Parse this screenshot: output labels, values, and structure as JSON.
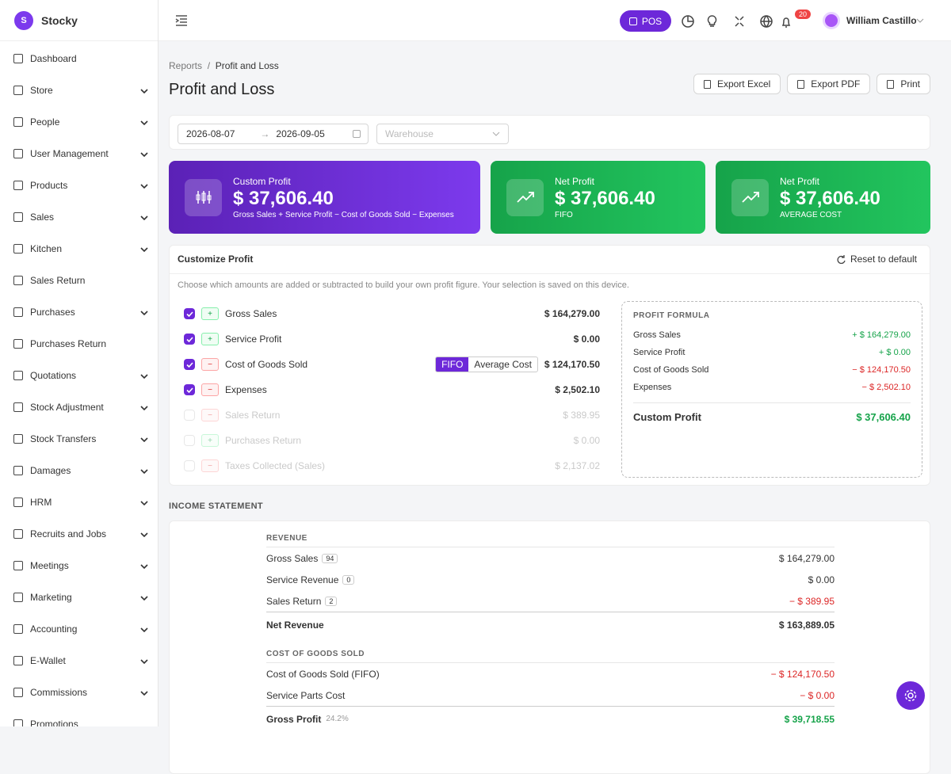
{
  "brand": "Stocky",
  "sidebar": [
    {
      "label": "Dashboard",
      "sub": false
    },
    {
      "label": "Store",
      "sub": true
    },
    {
      "label": "People",
      "sub": true
    },
    {
      "label": "User Management",
      "sub": true
    },
    {
      "label": "Products",
      "sub": true
    },
    {
      "label": "Sales",
      "sub": true
    },
    {
      "label": "Kitchen",
      "sub": true
    },
    {
      "label": "Sales Return",
      "sub": false
    },
    {
      "label": "Purchases",
      "sub": true
    },
    {
      "label": "Purchases Return",
      "sub": false
    },
    {
      "label": "Quotations",
      "sub": true
    },
    {
      "label": "Stock Adjustment",
      "sub": true
    },
    {
      "label": "Stock Transfers",
      "sub": true
    },
    {
      "label": "Damages",
      "sub": true
    },
    {
      "label": "HRM",
      "sub": true
    },
    {
      "label": "Recruits and Jobs",
      "sub": true
    },
    {
      "label": "Meetings",
      "sub": true
    },
    {
      "label": "Marketing",
      "sub": true
    },
    {
      "label": "Accounting",
      "sub": true
    },
    {
      "label": "E-Wallet",
      "sub": true
    },
    {
      "label": "Commissions",
      "sub": true
    },
    {
      "label": "Promotions",
      "sub": false
    }
  ],
  "topbar": {
    "pos": "POS",
    "notifications": 20,
    "user": "William Castillo"
  },
  "breadcrumb": [
    "Reports",
    "Profit and Loss"
  ],
  "title": "Profit and Loss",
  "actions": [
    "Export Excel",
    "Export PDF",
    "Print"
  ],
  "filters": {
    "start": "2026-08-07",
    "end": "2026-09-05",
    "warehouse": "Warehouse"
  },
  "cards": [
    {
      "label": "Custom Profit",
      "value": "$ 37,606.40",
      "note": "Gross Sales + Service Profit − Cost of Goods Sold − Expenses"
    },
    {
      "label": "Net Profit",
      "value": "$ 37,606.40",
      "note": "FIFO"
    },
    {
      "label": "Net Profit",
      "value": "$ 37,606.40",
      "note": "AVERAGE COST"
    }
  ],
  "customize": {
    "title": "Customize Profit",
    "reset": "Reset to default",
    "description": "Choose which amounts are added or subtracted to build your own profit figure. Your selection is saved on this device.",
    "items": [
      {
        "checked": true,
        "sign": "+",
        "label": "Gross Sales",
        "amount": "$ 164,279.00"
      },
      {
        "checked": true,
        "sign": "+",
        "label": "Service Profit",
        "amount": "$ 0.00"
      },
      {
        "checked": true,
        "sign": "−",
        "label": "Cost of Goods Sold",
        "amount": "$ 124,170.50"
      },
      {
        "checked": true,
        "sign": "−",
        "label": "Expenses",
        "amount": "$ 2,502.10"
      },
      {
        "checked": false,
        "sign": "−",
        "label": "Sales Return",
        "amount": "$ 389.95"
      },
      {
        "checked": false,
        "sign": "+",
        "label": "Purchases Return",
        "amount": "$ 0.00"
      },
      {
        "checked": false,
        "sign": "−",
        "label": "Taxes Collected (Sales)",
        "amount": "$ 2,137.02"
      }
    ],
    "cost_methods": [
      "FIFO",
      "Average Cost"
    ],
    "formula": {
      "title": "PROFIT FORMULA",
      "rows": [
        {
          "label": "Gross Sales",
          "value": "+ $ 164,279.00"
        },
        {
          "label": "Service Profit",
          "value": "+ $ 0.00"
        },
        {
          "label": "Cost of Goods Sold",
          "value": "− $ 124,170.50"
        },
        {
          "label": "Expenses",
          "value": "− $ 2,502.10"
        }
      ],
      "total_label": "Custom Profit",
      "total_value": "$ 37,606.40"
    }
  },
  "income_statement": {
    "title": "INCOME STATEMENT",
    "revenue": {
      "title": "REVENUE",
      "rows": [
        {
          "label": "Gross Sales",
          "count": 94,
          "value": "$ 164,279.00"
        },
        {
          "label": "Service Revenue",
          "count": 0,
          "value": "$ 0.00"
        },
        {
          "label": "Sales Return",
          "count": 2,
          "value": "− $ 389.95"
        }
      ],
      "total_label": "Net Revenue",
      "total_value": "$ 163,889.05"
    },
    "cogs": {
      "title": "COST OF GOODS SOLD",
      "rows": [
        {
          "label": "Cost of Goods Sold (FIFO)",
          "value": "− $ 124,170.50"
        },
        {
          "label": "Service Parts Cost",
          "value": "− $ 0.00"
        }
      ],
      "total_label": "Gross Profit",
      "total_badge": "24.2%",
      "total_value": "$ 39,718.55"
    }
  }
}
